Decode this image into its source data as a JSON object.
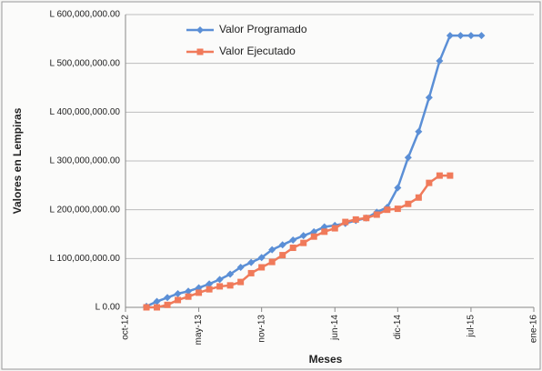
{
  "chart_data": {
    "type": "line",
    "y_label": "Valores en Lempiras",
    "x_label": "Meses",
    "x": [
      "2012-12",
      "2013-01",
      "2013-02",
      "2013-03",
      "2013-04",
      "2013-05",
      "2013-06",
      "2013-07",
      "2013-08",
      "2013-09",
      "2013-10",
      "2013-11",
      "2013-12",
      "2014-01",
      "2014-02",
      "2014-03",
      "2014-04",
      "2014-05",
      "2014-06",
      "2014-07",
      "2014-08",
      "2014-09",
      "2014-10",
      "2014-11",
      "2014-12",
      "2015-01",
      "2015-02",
      "2015-03",
      "2015-04",
      "2015-05",
      "2015-06",
      "2015-07",
      "2015-08"
    ],
    "series": [
      {
        "name": "Valor Programado",
        "color": "#5b8fd6",
        "marker": "diamond",
        "values": [
          2000000,
          12000000,
          20000000,
          28000000,
          33000000,
          40000000,
          48000000,
          57000000,
          68000000,
          82000000,
          92000000,
          102000000,
          118000000,
          128000000,
          138000000,
          147000000,
          155000000,
          165000000,
          168000000,
          172000000,
          178000000,
          183000000,
          195000000,
          205000000,
          245000000,
          307000000,
          360000000,
          430000000,
          505000000,
          557000000,
          557000000,
          557000000,
          557000000
        ]
      },
      {
        "name": "Valor Ejecutado",
        "color": "#f07a5a",
        "marker": "square",
        "values": [
          0,
          0,
          5000000,
          15000000,
          22000000,
          30000000,
          37000000,
          43000000,
          45000000,
          52000000,
          70000000,
          82000000,
          93000000,
          107000000,
          122000000,
          132000000,
          145000000,
          155000000,
          162000000,
          175000000,
          180000000,
          183000000,
          190000000,
          200000000,
          202000000,
          212000000,
          225000000,
          255000000,
          270000000,
          270000000,
          null,
          null,
          null
        ]
      }
    ],
    "xlim": [
      "2012-10",
      "2016-01"
    ],
    "xticks": [
      {
        "value": "2012-10",
        "label": "oct-12"
      },
      {
        "value": "2013-05",
        "label": "may-13"
      },
      {
        "value": "2013-11",
        "label": "nov-13"
      },
      {
        "value": "2014-06",
        "label": "jun-14"
      },
      {
        "value": "2014-12",
        "label": "dic-14"
      },
      {
        "value": "2015-07",
        "label": "jul-15"
      },
      {
        "value": "2016-01",
        "label": "ene-16"
      }
    ],
    "ylim": [
      0,
      600000000
    ],
    "yticks": [
      {
        "value": 0,
        "label": "L 0.00"
      },
      {
        "value": 100000000,
        "label": "L 100,000,000.00"
      },
      {
        "value": 200000000,
        "label": "L 200,000,000.00"
      },
      {
        "value": 300000000,
        "label": "L 300,000,000.00"
      },
      {
        "value": 400000000,
        "label": "L 400,000,000.00"
      },
      {
        "value": 500000000,
        "label": "L 500,000,000.00"
      },
      {
        "value": 600000000,
        "label": "L 600,000,000.00"
      }
    ],
    "grid": true,
    "legend": "top"
  }
}
